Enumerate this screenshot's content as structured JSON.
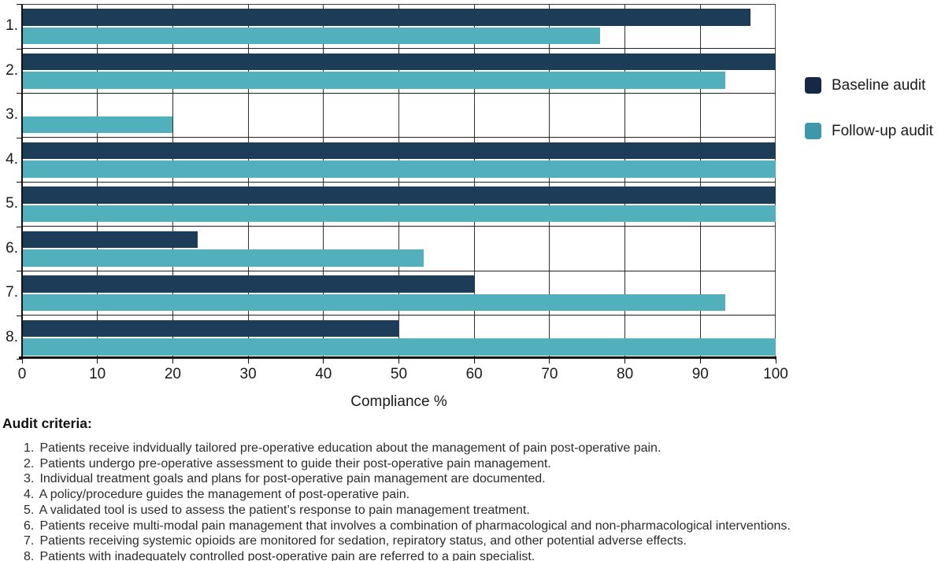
{
  "chart_data": {
    "type": "bar",
    "orientation": "horizontal",
    "title": "",
    "xlabel": "Compliance %",
    "ylabel": "",
    "xlim": [
      0,
      100
    ],
    "xticks": [
      0,
      10,
      20,
      30,
      40,
      50,
      60,
      70,
      80,
      90,
      100
    ],
    "grid": true,
    "legend_position": "right",
    "categories": [
      "1.",
      "2.",
      "3.",
      "4.",
      "5.",
      "6.",
      "7.",
      "8."
    ],
    "series": [
      {
        "name": "Baseline audit",
        "color": "#1D3C58",
        "values": [
          96.7,
          100,
          0,
          100,
          100,
          23.3,
          60,
          50
        ]
      },
      {
        "name": "Follow-up audit",
        "color": "#52AFBC",
        "values": [
          76.7,
          93.3,
          20,
          100,
          100,
          53.3,
          93.3,
          100
        ]
      }
    ]
  },
  "legend": {
    "items": [
      {
        "label": "Baseline audit",
        "color": "#162944"
      },
      {
        "label": "Follow-up audit",
        "color": "#3F97AC"
      }
    ]
  },
  "criteria": {
    "heading": "Audit criteria:",
    "items": [
      {
        "num": "1.",
        "text": "Patients receive indvidually tailored pre-operative education about the management of pain post-operative pain."
      },
      {
        "num": "2.",
        "text": "Patients undergo pre-operative assessment to guide their post-operative pain management."
      },
      {
        "num": "3.",
        "text": "Individual treatment goals and plans for post-operative pain management are documented."
      },
      {
        "num": "4.",
        "text": "A policy/procedure guides the management of post-operative pain."
      },
      {
        "num": "5.",
        "text": "A validated tool is used to assess the patient’s response to pain management treatment."
      },
      {
        "num": "6.",
        "text": "Patients receive multi-modal pain management that involves a combination of pharmacological and non-pharmacological interventions."
      },
      {
        "num": "7.",
        "text": "Patients receiving systemic opioids are monitored for sedation, repiratory status, and other potential adverse effects."
      },
      {
        "num": "8.",
        "text": "Patients with inadequately controlled post-operative pain are referred to a pain specialist."
      }
    ]
  }
}
